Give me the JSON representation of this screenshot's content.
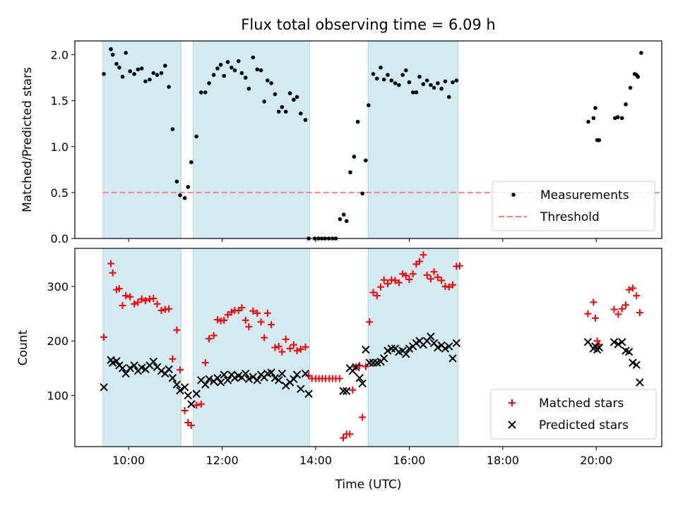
{
  "chart_data": [
    {
      "type": "scatter",
      "title": "Flux total observing time = 6.09 h",
      "xlabel": "",
      "ylabel": "Matched/Predicted stars",
      "xlim": [
        8.85,
        21.4
      ],
      "ylim": [
        0.0,
        2.15
      ],
      "xticks": [
        10,
        12,
        14,
        16,
        18,
        20
      ],
      "yticks": [
        0.0,
        0.5,
        1.0,
        1.5,
        2.0
      ],
      "ytick_labels": [
        "0.0",
        "0.5",
        "1.0",
        "1.5",
        "2.0"
      ],
      "shaded_intervals": [
        [
          9.45,
          11.12
        ],
        [
          11.38,
          13.87
        ],
        [
          15.12,
          17.05
        ]
      ],
      "shade_color": "#add8e6",
      "threshold": {
        "label": "Threshold",
        "y": 0.5,
        "x_range": [
          9.45,
          21.4
        ],
        "color": "#ff7f7f"
      },
      "legend": [
        {
          "label": "Measurements",
          "marker": "dot",
          "color": "#000000"
        },
        {
          "label": "Threshold",
          "marker": "dashed-line",
          "color": "#ff7f7f"
        }
      ],
      "legend_position": "lower-right",
      "series": [
        {
          "name": "Measurements",
          "color": "#000000",
          "x": [
            9.47,
            9.62,
            9.66,
            9.74,
            9.8,
            9.87,
            9.94,
            10.03,
            10.12,
            10.2,
            10.28,
            10.36,
            10.45,
            10.53,
            10.61,
            10.7,
            10.78,
            10.86,
            10.94,
            11.03,
            11.1,
            11.2,
            11.27,
            11.34,
            11.45,
            11.55,
            11.64,
            11.72,
            11.82,
            11.9,
            11.97,
            12.04,
            12.12,
            12.2,
            12.27,
            12.35,
            12.42,
            12.5,
            12.57,
            12.66,
            12.75,
            12.83,
            12.9,
            12.97,
            13.05,
            13.13,
            13.21,
            13.28,
            13.36,
            13.45,
            13.53,
            13.6,
            13.68,
            13.78,
            13.85,
            13.98,
            14.06,
            14.13,
            14.2,
            14.28,
            14.36,
            14.43,
            14.52,
            14.6,
            14.66,
            14.74,
            14.82,
            14.9,
            15.0,
            15.07,
            15.13,
            15.23,
            15.31,
            15.39,
            15.46,
            15.54,
            15.62,
            15.7,
            15.78,
            15.86,
            15.93,
            16.0,
            16.08,
            16.15,
            16.22,
            16.3,
            16.38,
            16.46,
            16.53,
            16.61,
            16.69,
            16.77,
            16.85,
            16.93,
            17.01,
            19.83,
            19.94,
            19.98,
            20.02,
            20.06,
            20.4,
            20.46,
            20.55,
            20.63,
            20.73,
            20.82,
            20.86,
            20.89,
            20.96
          ],
          "y": [
            1.79,
            2.06,
            2.0,
            1.9,
            1.86,
            1.76,
            2.02,
            1.82,
            1.79,
            1.84,
            1.85,
            1.71,
            1.73,
            1.8,
            1.78,
            1.8,
            1.88,
            1.65,
            1.19,
            0.62,
            0.47,
            0.44,
            0.56,
            0.83,
            1.11,
            1.59,
            1.59,
            1.69,
            1.78,
            1.85,
            1.89,
            1.77,
            1.92,
            1.86,
            1.83,
            1.93,
            1.8,
            1.75,
            1.63,
            1.97,
            1.84,
            1.83,
            1.49,
            1.72,
            1.69,
            1.57,
            1.38,
            1.43,
            1.38,
            1.58,
            1.51,
            1.54,
            1.36,
            1.29,
            0.0,
            0.0,
            0.0,
            0.0,
            0.0,
            0.0,
            0.0,
            0.0,
            0.21,
            0.26,
            0.19,
            0.72,
            0.89,
            1.27,
            0.49,
            0.85,
            1.45,
            1.79,
            1.74,
            1.86,
            1.73,
            1.78,
            1.72,
            1.69,
            1.67,
            1.78,
            1.83,
            1.7,
            1.59,
            1.59,
            1.76,
            1.68,
            1.72,
            1.67,
            1.64,
            1.69,
            1.63,
            1.71,
            1.54,
            1.7,
            1.72,
            1.27,
            1.31,
            1.42,
            1.07,
            1.07,
            1.31,
            1.32,
            1.31,
            1.46,
            1.64,
            1.79,
            1.78,
            1.76,
            2.02
          ]
        }
      ]
    },
    {
      "type": "scatter",
      "title": "",
      "xlabel": "Time (UTC)",
      "ylabel": "Count",
      "xlim": [
        8.85,
        21.4
      ],
      "ylim": [
        6,
        370
      ],
      "xticks": [
        10,
        12,
        14,
        16,
        18,
        20
      ],
      "xtick_labels": [
        "10:00",
        "12:00",
        "14:00",
        "16:00",
        "18:00",
        "20:00"
      ],
      "yticks": [
        100,
        200,
        300
      ],
      "ytick_labels": [
        "100",
        "200",
        "300"
      ],
      "shaded_intervals": [
        [
          9.45,
          11.12
        ],
        [
          11.38,
          13.87
        ],
        [
          15.12,
          17.05
        ]
      ],
      "shade_color": "#add8e6",
      "legend": [
        {
          "label": "Matched stars",
          "marker": "plus",
          "color": "#ff0000"
        },
        {
          "label": "Predicted stars",
          "marker": "x",
          "color": "#000000"
        }
      ],
      "legend_position": "lower-right",
      "series": [
        {
          "name": "Matched stars",
          "marker": "plus",
          "color": "#ff0000",
          "x": [
            9.47,
            9.62,
            9.66,
            9.74,
            9.8,
            9.87,
            9.94,
            10.03,
            10.12,
            10.2,
            10.28,
            10.36,
            10.45,
            10.53,
            10.61,
            10.7,
            10.78,
            10.86,
            10.94,
            11.03,
            11.1,
            11.2,
            11.27,
            11.34,
            11.45,
            11.55,
            11.64,
            11.72,
            11.82,
            11.9,
            11.97,
            12.04,
            12.12,
            12.2,
            12.27,
            12.35,
            12.42,
            12.5,
            12.57,
            12.66,
            12.75,
            12.83,
            12.9,
            12.97,
            13.05,
            13.13,
            13.21,
            13.28,
            13.36,
            13.45,
            13.53,
            13.6,
            13.68,
            13.78,
            13.85,
            13.92,
            14.0,
            14.07,
            14.14,
            14.21,
            14.29,
            14.36,
            14.43,
            14.51,
            14.59,
            14.66,
            14.73,
            14.79,
            14.86,
            14.94,
            15.0,
            15.07,
            15.15,
            15.23,
            15.31,
            15.39,
            15.46,
            15.54,
            15.62,
            15.7,
            15.78,
            15.86,
            15.93,
            16.0,
            16.08,
            16.15,
            16.22,
            16.3,
            16.38,
            16.46,
            16.53,
            16.61,
            16.69,
            16.77,
            16.85,
            16.93,
            17.01,
            17.08,
            19.82,
            19.94,
            19.98,
            20.02,
            20.06,
            20.38,
            20.47,
            20.55,
            20.63,
            20.7,
            20.78,
            20.86,
            20.93
          ],
          "y": [
            207,
            342,
            325,
            294,
            296,
            265,
            283,
            281,
            268,
            271,
            277,
            274,
            277,
            278,
            268,
            256,
            258,
            259,
            167,
            220,
            147,
            72,
            50,
            45,
            82,
            84,
            160,
            204,
            210,
            239,
            237,
            238,
            248,
            253,
            256,
            256,
            261,
            238,
            226,
            255,
            251,
            235,
            206,
            251,
            230,
            188,
            190,
            180,
            203,
            186,
            193,
            182,
            185,
            189,
            136,
            131,
            131,
            131,
            131,
            131,
            131,
            131,
            131,
            131,
            22,
            29,
            29,
            110,
            152,
            155,
            60,
            153,
            235,
            289,
            283,
            299,
            312,
            305,
            312,
            311,
            307,
            323,
            320,
            313,
            323,
            341,
            346,
            358,
            321,
            314,
            327,
            317,
            311,
            300,
            299,
            303,
            337,
            338,
            250,
            271,
            242,
            200,
            193,
            258,
            249,
            259,
            266,
            294,
            297,
            283,
            252
          ]
        },
        {
          "name": "Predicted stars",
          "marker": "x",
          "color": "#000000",
          "x": [
            9.47,
            9.62,
            9.66,
            9.74,
            9.8,
            9.87,
            9.94,
            10.03,
            10.12,
            10.2,
            10.28,
            10.36,
            10.45,
            10.53,
            10.61,
            10.7,
            10.78,
            10.86,
            10.94,
            11.03,
            11.1,
            11.2,
            11.27,
            11.34,
            11.45,
            11.55,
            11.64,
            11.72,
            11.82,
            11.9,
            11.97,
            12.04,
            12.12,
            12.2,
            12.27,
            12.35,
            12.42,
            12.5,
            12.57,
            12.66,
            12.75,
            12.83,
            12.9,
            12.97,
            13.05,
            13.13,
            13.21,
            13.28,
            13.36,
            13.45,
            13.53,
            13.6,
            13.68,
            13.78,
            13.85,
            14.59,
            14.66,
            14.73,
            14.79,
            14.86,
            14.94,
            15.0,
            15.07,
            15.15,
            15.23,
            15.31,
            15.39,
            15.46,
            15.54,
            15.62,
            15.7,
            15.78,
            15.86,
            15.93,
            16.0,
            16.08,
            16.15,
            16.22,
            16.3,
            16.38,
            16.46,
            16.53,
            16.61,
            16.69,
            16.77,
            16.85,
            16.93,
            17.01,
            19.82,
            19.94,
            19.98,
            20.02,
            20.06,
            20.38,
            20.47,
            20.55,
            20.63,
            20.7,
            20.78,
            20.86,
            20.93
          ],
          "y": [
            115,
            165,
            160,
            163,
            155,
            150,
            140,
            150,
            155,
            145,
            151,
            148,
            155,
            162,
            152,
            145,
            140,
            148,
            132,
            120,
            109,
            115,
            100,
            84,
            103,
            128,
            120,
            130,
            126,
            132,
            124,
            138,
            128,
            138,
            132,
            136,
            133,
            140,
            130,
            134,
            128,
            138,
            133,
            140,
            142,
            132,
            128,
            140,
            118,
            124,
            130,
            138,
            112,
            140,
            103,
            108,
            108,
            150,
            145,
            152,
            132,
            122,
            184,
            160,
            160,
            160,
            162,
            168,
            182,
            186,
            186,
            180,
            182,
            176,
            186,
            190,
            196,
            200,
            193,
            200,
            208,
            196,
            188,
            192,
            186,
            190,
            168,
            196,
            198,
            186,
            190,
            184,
            188,
            198,
            194,
            198,
            182,
            180,
            160,
            156,
            124
          ]
        }
      ]
    }
  ]
}
